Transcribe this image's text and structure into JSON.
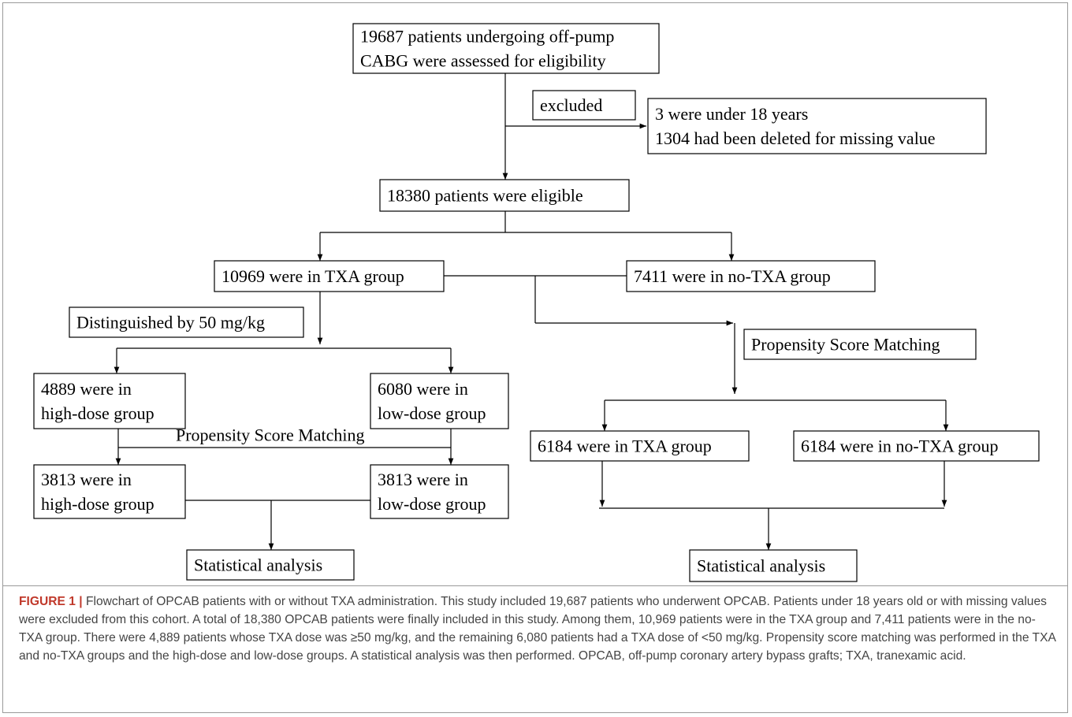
{
  "nodes": [
    {
      "lines": [
        "19687 patients undergoing off-pump",
        "CABG  were assessed for eligibility"
      ]
    },
    {
      "lines": [
        "excluded"
      ]
    },
    {
      "lines": [
        "3 were under 18 years",
        "1304 had been deleted for missing  value"
      ]
    },
    {
      "lines": [
        "18380 patients were eligible"
      ]
    },
    {
      "lines": [
        "10969 were in TXA group"
      ]
    },
    {
      "lines": [
        "7411 were in no-TXA group"
      ]
    },
    {
      "lines": [
        "Distinguished by 50 mg/kg"
      ]
    },
    {
      "lines": [
        "Propensity Score Matching"
      ]
    },
    {
      "lines": [
        "4889 were in",
        "high-dose group"
      ]
    },
    {
      "lines": [
        "6080 were in",
        "low-dose group"
      ]
    },
    {
      "lines": [
        "Propensity Score Matching"
      ]
    },
    {
      "lines": [
        "6184 were in TXA group"
      ]
    },
    {
      "lines": [
        "6184 were in no-TXA group"
      ]
    },
    {
      "lines": [
        "3813 were in",
        "high-dose group"
      ]
    },
    {
      "lines": [
        "3813 were in",
        "low-dose group"
      ]
    },
    {
      "lines": [
        "Statistical analysis"
      ]
    },
    {
      "lines": [
        "Statistical analysis"
      ]
    }
  ],
  "caption": {
    "label": "FIGURE 1 |",
    "text": "Flowchart of OPCAB patients with or without TXA administration. This study included 19,687 patients who underwent OPCAB. Patients under 18 years old or with missing values were excluded from this cohort. A total of 18,380 OPCAB patients were finally included in this study. Among them, 10,969 patients were in the TXA group and 7,411 patients were in the no-TXA group. There were 4,889 patients whose TXA dose was ≥50 mg/kg, and the remaining 6,080 patients had a TXA dose of <50 mg/kg. Propensity score matching was performed in the TXA and no-TXA groups and the high-dose and low-dose groups. A statistical analysis was then performed. OPCAB, off-pump coronary artery bypass grafts; TXA, tranexamic acid."
  }
}
